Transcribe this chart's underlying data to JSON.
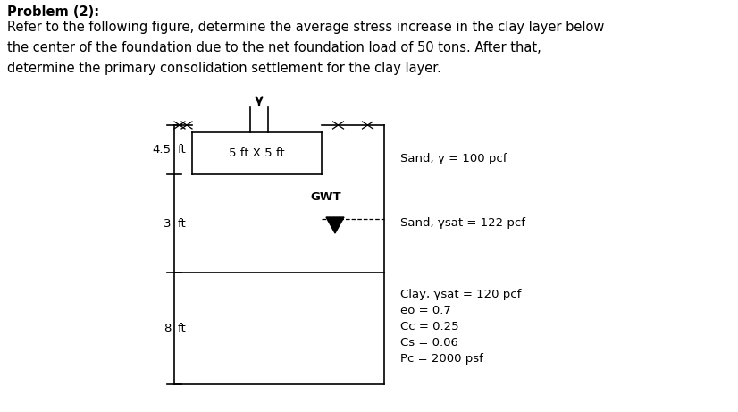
{
  "title_bold": "Problem (2):",
  "title_text": "Refer to the following figure, determine the average stress increase in the clay layer below\nthe center of the foundation due to the net foundation load of 50 tons. After that,\ndetermine the primary consolidation settlement for the clay layer.",
  "bg_color": "#ffffff",
  "fig_width": 8.26,
  "fig_height": 4.61,
  "labels": {
    "sand_above": "Sand, γ = 100 pcf",
    "sand_below": "Sand, γsat = 122 pcf",
    "clay_line1": "Clay, γsat = 120 pcf",
    "clay_line2": "eo = 0.7",
    "clay_line3": "Cc = 0.25",
    "clay_line4": "Cs = 0.06",
    "clay_line5": "Pc = 2000 psf",
    "foundation_size": "5 ft X 5 ft",
    "gwt": "GWT",
    "dim_45": "4.5",
    "dim_3": "3",
    "dim_8": "8",
    "ft": "ft"
  }
}
